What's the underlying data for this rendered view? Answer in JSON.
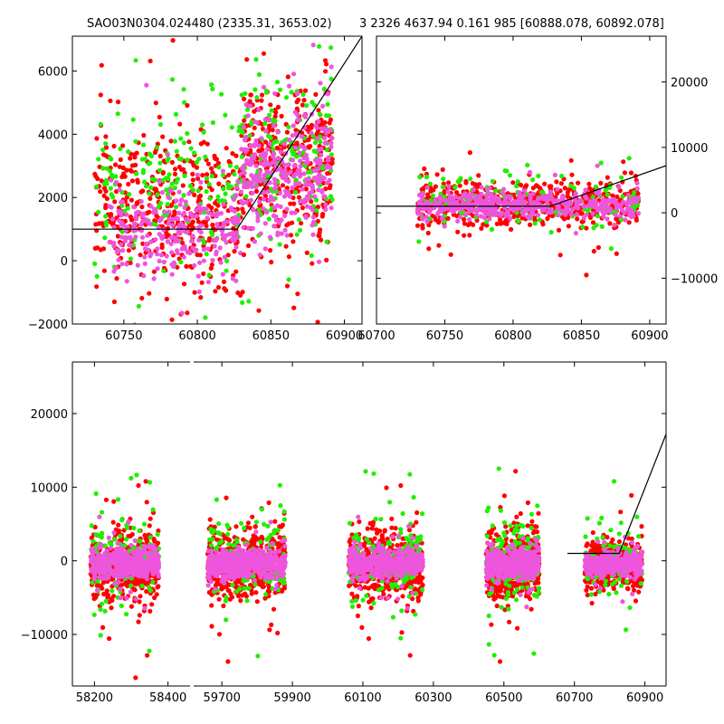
{
  "figure": {
    "title_left": "SAO03N0304.024480 (2335.31, 3653.02)",
    "title_right": "3 2326 4637.94 0.161 985 [60888.078, 60892.078]"
  },
  "chart_data": [
    {
      "name": "top-left",
      "type": "scatter",
      "xlim": [
        60715,
        60912
      ],
      "ylim": [
        -2000,
        7100
      ],
      "xticks": [
        60750,
        60800,
        60850,
        60900
      ],
      "yticks": [
        -2000,
        0,
        2000,
        4000,
        6000
      ],
      "y_axis_side": "left",
      "model_line": [
        [
          60715,
          1000
        ],
        [
          60827,
          1000
        ],
        [
          60912,
          7100
        ]
      ],
      "clusters": [
        {
          "x0": 60730,
          "x1": 60830,
          "center": 1600,
          "spread": 2100,
          "n": 420,
          "color": "red"
        },
        {
          "x0": 60730,
          "x1": 60830,
          "center": 2200,
          "spread": 2300,
          "n": 180,
          "color": "green"
        },
        {
          "x0": 60740,
          "x1": 60830,
          "center": 900,
          "spread": 1400,
          "n": 260,
          "color": "magenta"
        },
        {
          "x0": 60830,
          "x1": 60892,
          "center": 3200,
          "spread": 2300,
          "n": 360,
          "color": "red"
        },
        {
          "x0": 60830,
          "x1": 60892,
          "center": 3400,
          "spread": 2200,
          "n": 160,
          "color": "green"
        },
        {
          "x0": 60830,
          "x1": 60892,
          "center": 2800,
          "spread": 1800,
          "n": 300,
          "color": "magenta"
        }
      ]
    },
    {
      "name": "top-right",
      "type": "scatter",
      "xlim": [
        60700,
        60912
      ],
      "ylim": [
        -17000,
        27000
      ],
      "xticks": [
        60700,
        60750,
        60800,
        60850,
        60900
      ],
      "yticks": [
        -10000,
        0,
        10000,
        20000
      ],
      "y_axis_side": "right",
      "model_line": [
        [
          60700,
          1000
        ],
        [
          60827,
          1000
        ],
        [
          60912,
          7200
        ]
      ],
      "clusters": [
        {
          "x0": 60730,
          "x1": 60892,
          "center": 1500,
          "spread": 3200,
          "n": 520,
          "color": "red"
        },
        {
          "x0": 60730,
          "x1": 60892,
          "center": 1800,
          "spread": 3600,
          "n": 140,
          "color": "green"
        },
        {
          "x0": 60730,
          "x1": 60892,
          "center": 1200,
          "spread": 1800,
          "n": 420,
          "color": "magenta"
        }
      ]
    },
    {
      "name": "bottom",
      "type": "scatter",
      "ylim": [
        -17000,
        27000
      ],
      "yticks": [
        -10000,
        0,
        10000,
        20000
      ],
      "y_axis_side": "left",
      "segments": [
        {
          "xlim": [
            58140,
            58460
          ],
          "xticks": [
            58200,
            58400
          ],
          "data_range": [
            58190,
            58375
          ]
        },
        {
          "xlim": [
            59620,
            60960
          ],
          "xticks": [
            59700,
            59900,
            60100,
            60300,
            60500,
            60700,
            60900
          ],
          "data_ranges": [
            [
              59660,
              59880
            ],
            [
              60060,
              60270
            ],
            [
              60450,
              60600
            ],
            [
              60730,
              60892
            ]
          ]
        }
      ],
      "model_line": [
        [
          60680,
          1000
        ],
        [
          60827,
          1000
        ],
        [
          60960,
          17200
        ]
      ]
    }
  ]
}
